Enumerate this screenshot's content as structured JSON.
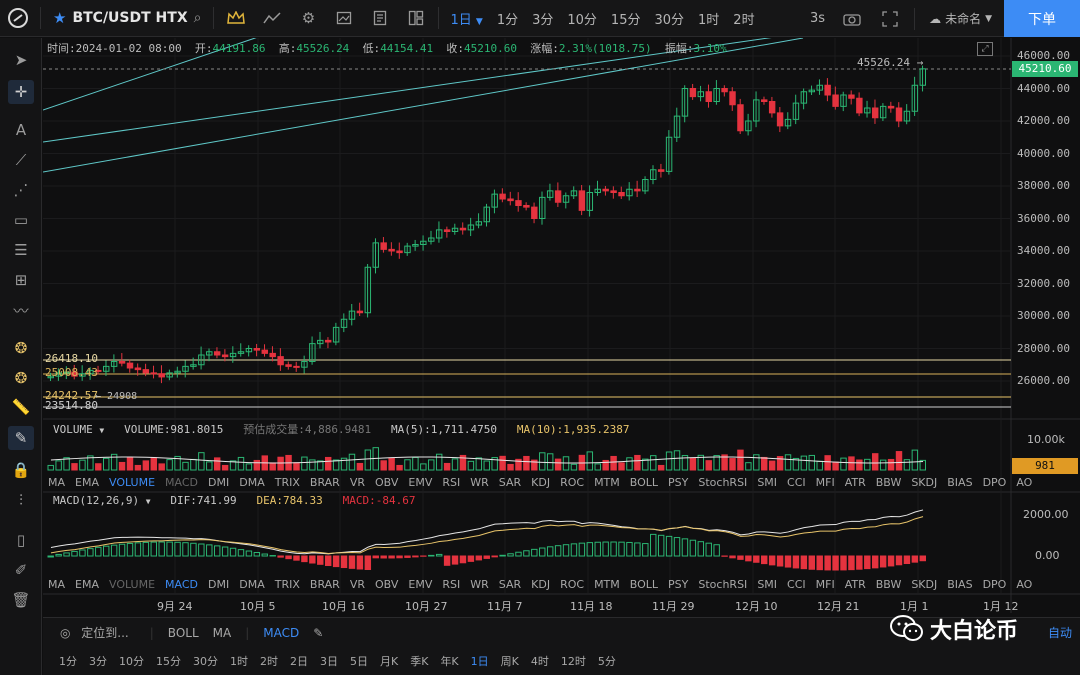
{
  "toolbar": {
    "symbol": "BTC/USDT HTX",
    "timeframes": [
      {
        "label": "1日",
        "active": true,
        "dropdown": true
      },
      {
        "label": "1分"
      },
      {
        "label": "3分"
      },
      {
        "label": "10分"
      },
      {
        "label": "15分"
      },
      {
        "label": "30分"
      },
      {
        "label": "1时"
      },
      {
        "label": "2时"
      }
    ],
    "interval": "3s",
    "layout_name": "未命名",
    "order_button": "下单"
  },
  "ohlc_info": {
    "time_label": "时间:",
    "time": "2024-01-02 08:00",
    "open_label": "开:",
    "open": "44191.86",
    "high_label": "高:",
    "high": "45526.24",
    "low_label": "低:",
    "low": "44154.41",
    "close_label": "收:",
    "close": "45210.60",
    "change_label": "涨幅:",
    "change": "2.31%(1018.75)",
    "amp_label": "振幅:",
    "amp": "3.10%"
  },
  "price_axis": {
    "ticks": [
      "46000.00",
      "44000.00",
      "42000.00",
      "40000.00",
      "38000.00",
      "36000.00",
      "34000.00",
      "32000.00",
      "30000.00",
      "28000.00",
      "26000.00"
    ],
    "tick_values": [
      46000,
      44000,
      42000,
      40000,
      38000,
      36000,
      34000,
      32000,
      30000,
      28000,
      26000
    ],
    "last_price": "45210.60",
    "high_marker": "45526.24"
  },
  "horizontal_levels": [
    {
      "label": "26418.10",
      "value": 27300,
      "color": "#e6d7a3"
    },
    {
      "label": "25008.43",
      "value": 26400,
      "color": "#d8b25a"
    },
    {
      "label": "24242.57",
      "value": 25000,
      "color": "#e8c46a"
    },
    {
      "label": "23514.80",
      "value": 24500,
      "color": "#cfcfcf"
    }
  ],
  "low_marker": "24908",
  "volume": {
    "title": "VOLUME",
    "value": "VOLUME:981.8015",
    "estimate": "预估成交量:4,886.9481",
    "ma5": "MA(5):1,711.4750",
    "ma10": "MA(10):1,935.2387",
    "axis_top": "10.00k",
    "last": "981"
  },
  "macd": {
    "title": "MACD(12,26,9)",
    "dif": "DIF:741.99",
    "dea": "DEA:784.33",
    "macd": "MACD:-84.67",
    "axis": [
      "2000.00",
      "0.00"
    ]
  },
  "indicator_tabs": [
    "MA",
    "EMA",
    "VOLUME",
    "MACD",
    "DMI",
    "DMA",
    "TRIX",
    "BRAR",
    "VR",
    "OBV",
    "EMV",
    "RSI",
    "WR",
    "SAR",
    "KDJ",
    "ROC",
    "MTM",
    "BOLL",
    "PSY",
    "StochRSI",
    "SMI",
    "CCI",
    "MFI",
    "ATR",
    "BBW",
    "SKDJ",
    "BIAS",
    "DPO",
    "AO"
  ],
  "date_axis": [
    "9月 24",
    "10月 5",
    "10月 16",
    "10月 27",
    "11月 7",
    "11月 18",
    "11月 29",
    "12月 10",
    "12月 21",
    "1月 1",
    "1月 12"
  ],
  "bottom": {
    "locate": "定位到...",
    "indicators": [
      "BOLL",
      "MA",
      "MACD"
    ],
    "periods": [
      "1分",
      "3分",
      "10分",
      "15分",
      "30分",
      "1时",
      "2时",
      "2日",
      "3日",
      "5日",
      "月K",
      "季K",
      "年K",
      "1日",
      "周K",
      "4时",
      "12时",
      "5分"
    ],
    "auto": "自动"
  },
  "watermark": "大白论币",
  "colors": {
    "up": "#2bb673",
    "down": "#e5333f",
    "accent": "#3d8cf5",
    "bg": "#0f0f10"
  },
  "chart_data": {
    "type": "candlestick",
    "closes": [
      26300,
      26500,
      26550,
      26300,
      26450,
      26650,
      26600,
      26900,
      27200,
      27100,
      26800,
      26700,
      26500,
      26450,
      26250,
      26500,
      26600,
      26900,
      27000,
      27600,
      27800,
      27600,
      27500,
      27700,
      27800,
      28000,
      27900,
      27700,
      27500,
      27000,
      26900,
      26850,
      27200,
      28300,
      28500,
      28400,
      29300,
      29800,
      30300,
      30200,
      33000,
      34500,
      34100,
      34000,
      33900,
      34300,
      34400,
      34600,
      34800,
      35300,
      35200,
      35400,
      35300,
      35600,
      35800,
      36700,
      37500,
      37200,
      37100,
      36800,
      36700,
      36000,
      37300,
      37700,
      37000,
      37400,
      37700,
      36500,
      37600,
      37800,
      37700,
      37600,
      37400,
      37800,
      37700,
      38400,
      39000,
      38900,
      41000,
      42300,
      44000,
      43500,
      43800,
      43200,
      44000,
      43800,
      43000,
      41400,
      42000,
      43300,
      43200,
      42500,
      41700,
      42100,
      43100,
      43800,
      43900,
      44200,
      43600,
      42900,
      43600,
      43400,
      42500,
      42800,
      42200,
      42900,
      42800,
      42000,
      42600,
      44200,
      45210
    ]
  }
}
